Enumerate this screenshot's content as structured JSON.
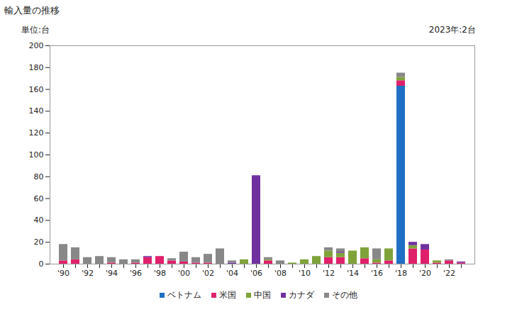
{
  "chart_data": {
    "type": "bar",
    "stacked": true,
    "title": "輸入量の推移",
    "y_label": "単位:台",
    "annotation": "2023年:2台",
    "categories": [
      "'90",
      null,
      "'92",
      null,
      "'94",
      null,
      "'96",
      null,
      "'98",
      null,
      "'00",
      null,
      "'02",
      null,
      "'04",
      null,
      "'06",
      null,
      "'08",
      null,
      "'10",
      null,
      "'12",
      null,
      "'14",
      null,
      "'16",
      null,
      "'18",
      null,
      "'20",
      null,
      "'22",
      null
    ],
    "series": [
      {
        "name": "ベトナム",
        "color": "#1f6fc5",
        "values": [
          0,
          0,
          0,
          0,
          0,
          0,
          0,
          0,
          0,
          0,
          0,
          0,
          0,
          0,
          0,
          0,
          0,
          0,
          0,
          0,
          0,
          0,
          0,
          0,
          0,
          0,
          0,
          0,
          163,
          0,
          0,
          0,
          0,
          0
        ]
      },
      {
        "name": "米国",
        "color": "#e0206a",
        "values": [
          3,
          4,
          0,
          0,
          1,
          0,
          1,
          6,
          7,
          3,
          2,
          1,
          1,
          0,
          0,
          0,
          0,
          3,
          0,
          0,
          0,
          0,
          6,
          6,
          0,
          5,
          1,
          3,
          5,
          14,
          13,
          1,
          3,
          1
        ]
      },
      {
        "name": "中国",
        "color": "#7fa33a",
        "values": [
          0,
          0,
          0,
          0,
          0,
          0,
          0,
          0,
          0,
          0,
          0,
          0,
          0,
          0,
          0,
          4,
          0,
          1,
          0,
          1,
          4,
          7,
          6,
          4,
          12,
          10,
          3,
          11,
          3,
          3,
          0,
          2,
          0,
          0
        ]
      },
      {
        "name": "カナダ",
        "color": "#7030a0",
        "values": [
          0,
          0,
          0,
          0,
          0,
          0,
          0,
          1,
          0,
          0,
          0,
          0,
          0,
          0,
          1,
          0,
          81,
          0,
          0,
          0,
          0,
          0,
          0,
          1,
          0,
          0,
          0,
          0,
          0,
          3,
          5,
          0,
          0,
          1
        ]
      },
      {
        "name": "その他",
        "color": "#888888",
        "values": [
          15,
          11,
          6,
          7,
          5,
          4,
          3,
          0,
          0,
          2,
          9,
          5,
          8,
          14,
          2,
          0,
          0,
          2,
          3,
          0,
          0,
          0,
          3,
          3,
          0,
          0,
          10,
          0,
          4,
          0,
          0,
          0,
          1,
          0
        ]
      }
    ],
    "ylim": [
      0,
      200
    ],
    "yticks": [
      0,
      20,
      40,
      60,
      80,
      100,
      120,
      140,
      160,
      180,
      200
    ],
    "grid": false,
    "legend": "bottom"
  }
}
